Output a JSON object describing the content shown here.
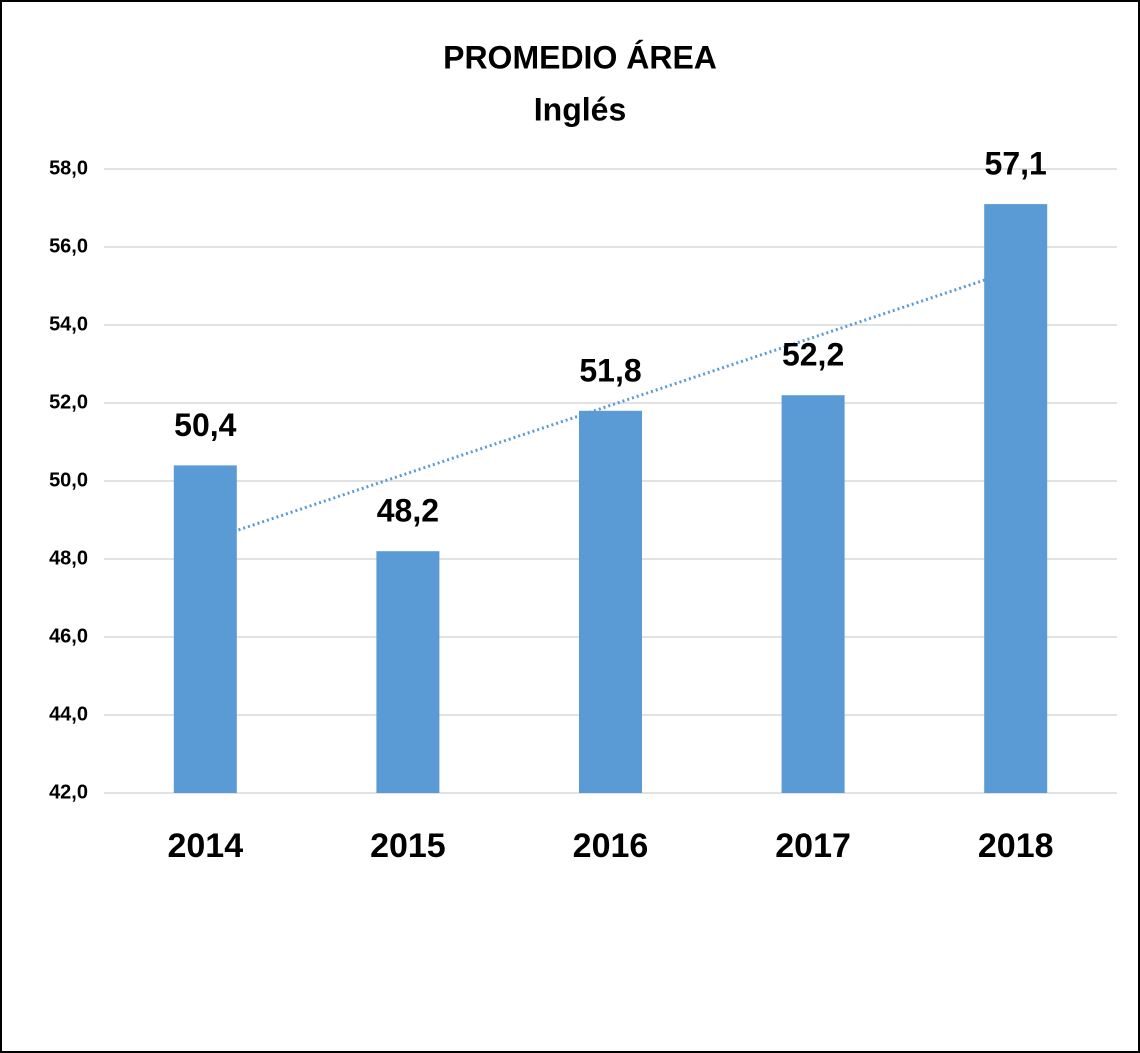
{
  "chart_data": {
    "type": "bar",
    "title": "PROMEDIO ÁREA",
    "subtitle": "Inglés",
    "categories": [
      "2014",
      "2015",
      "2016",
      "2017",
      "2018"
    ],
    "values": [
      50.4,
      48.2,
      51.8,
      52.2,
      57.1
    ],
    "value_labels": [
      "50,4",
      "48,2",
      "51,8",
      "52,2",
      "57,1"
    ],
    "color": "#5b9bd5",
    "ylim": [
      42,
      58
    ],
    "yticks": [
      {
        "value": 42,
        "label": "42,0"
      },
      {
        "value": 44,
        "label": "44,0"
      },
      {
        "value": 46,
        "label": "46,0"
      },
      {
        "value": 48,
        "label": "48,0"
      },
      {
        "value": 50,
        "label": "50,0"
      },
      {
        "value": 52,
        "label": "52,0"
      },
      {
        "value": 54,
        "label": "54,0"
      },
      {
        "value": 56,
        "label": "56,0"
      },
      {
        "value": 58,
        "label": "58,0"
      }
    ],
    "grid": true,
    "trendline": "linear"
  }
}
